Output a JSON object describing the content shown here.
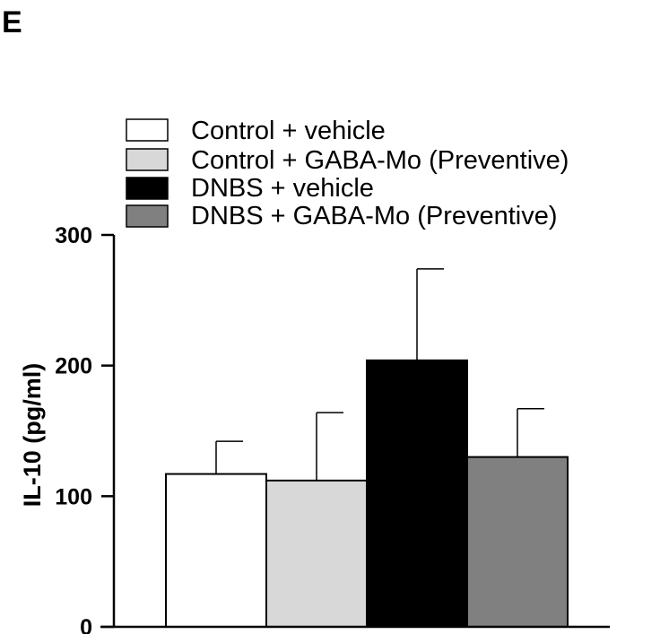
{
  "panel_label": "E",
  "chart_data": {
    "type": "bar",
    "ylabel": "IL-10 (pg/ml)",
    "ylim": [
      0,
      300
    ],
    "yticks": [
      0,
      100,
      200,
      300
    ],
    "legend_position": "top",
    "series": [
      {
        "name": "Control + vehicle",
        "value": 117,
        "error": 25,
        "color": "#ffffff"
      },
      {
        "name": "Control + GABA-Mo (Preventive)",
        "value": 112,
        "error": 52,
        "color": "#d8d8d8"
      },
      {
        "name": "DNBS + vehicle",
        "value": 204,
        "error": 70,
        "color": "#000000"
      },
      {
        "name": "DNBS + GABA-Mo (Preventive)",
        "value": 130,
        "error": 37,
        "color": "#808080"
      }
    ]
  }
}
